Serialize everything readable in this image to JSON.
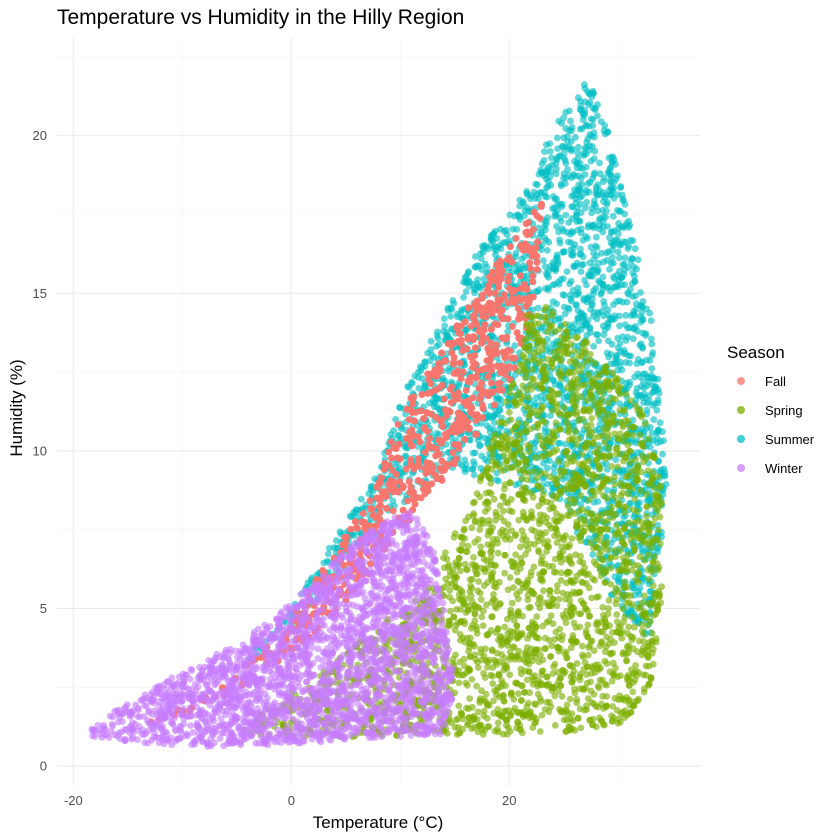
{
  "chart_data": {
    "type": "scatter",
    "title": "Temperature vs Humidity in the Hilly Region",
    "xlabel": "Temperature (°C)",
    "ylabel": "Humidity (%)",
    "xlim": [
      -21.5,
      37.5
    ],
    "ylim": [
      -0.6,
      23.1
    ],
    "x_ticks": [
      -20,
      0,
      20
    ],
    "y_ticks": [
      0,
      5,
      10,
      15,
      20
    ],
    "grid": true,
    "legend": {
      "title": "Season",
      "position": "right"
    },
    "series": [
      {
        "name": "Fall",
        "color": "#F8766D",
        "region": [
          [
            -14,
            1.2
          ],
          [
            -6,
            2.6
          ],
          [
            -1,
            4.2
          ],
          [
            4,
            6.8
          ],
          [
            8,
            9.0
          ],
          [
            10,
            11.2
          ],
          [
            14,
            13.4
          ],
          [
            19,
            16.0
          ],
          [
            23,
            18.0
          ],
          [
            22.5,
            15.0
          ],
          [
            20,
            12.0
          ],
          [
            15,
            9.5
          ],
          [
            11,
            7.8
          ],
          [
            6,
            5.6
          ],
          [
            0,
            3.5
          ],
          [
            -8,
            1.8
          ]
        ]
      },
      {
        "name": "Spring",
        "color": "#7CAE00",
        "region": [
          [
            -5,
            0.9
          ],
          [
            5,
            0.9
          ],
          [
            12,
            1.0
          ],
          [
            20,
            1.0
          ],
          [
            26,
            1.1
          ],
          [
            31,
            1.4
          ],
          [
            33,
            2.5
          ],
          [
            34,
            5.0
          ],
          [
            34,
            9.0
          ],
          [
            32,
            11.5
          ],
          [
            27,
            13.5
          ],
          [
            22,
            15.0
          ],
          [
            20,
            12.0
          ],
          [
            16,
            8.0
          ],
          [
            12,
            5.5
          ],
          [
            8,
            4.5
          ],
          [
            3,
            3.0
          ],
          [
            -2,
            2.0
          ]
        ]
      },
      {
        "name": "Summer",
        "color": "#00BFC4",
        "region": [
          [
            -5,
            3.2
          ],
          [
            0,
            5.0
          ],
          [
            4,
            7.2
          ],
          [
            8,
            9.3
          ],
          [
            10,
            11.6
          ],
          [
            14,
            14.3
          ],
          [
            17,
            16.3
          ],
          [
            22,
            18.4
          ],
          [
            24,
            20.3
          ],
          [
            27,
            22.1
          ],
          [
            29,
            20.2
          ],
          [
            31,
            17.3
          ],
          [
            33,
            14.3
          ],
          [
            34,
            11.2
          ],
          [
            34.5,
            8.4
          ],
          [
            33.5,
            6.2
          ],
          [
            33,
            4.0
          ],
          [
            30,
            5.0
          ],
          [
            27,
            7.0
          ],
          [
            24,
            8.5
          ],
          [
            19,
            9.0
          ],
          [
            14,
            9.5
          ],
          [
            10,
            8.2
          ],
          [
            6,
            6.7
          ],
          [
            1,
            4.5
          ],
          [
            -3,
            3.5
          ]
        ]
      },
      {
        "name": "Winter",
        "color": "#C77CFF",
        "region": [
          [
            -19,
            1.0
          ],
          [
            -16,
            0.8
          ],
          [
            -8,
            0.6
          ],
          [
            0,
            0.7
          ],
          [
            8,
            0.9
          ],
          [
            14,
            1.0
          ],
          [
            15,
            2.5
          ],
          [
            14,
            5.0
          ],
          [
            13,
            7.0
          ],
          [
            11,
            8.2
          ],
          [
            6,
            7.2
          ],
          [
            2,
            5.8
          ],
          [
            -2,
            4.6
          ],
          [
            -6,
            3.7
          ],
          [
            -11,
            2.8
          ],
          [
            -16,
            1.8
          ]
        ]
      }
    ]
  }
}
